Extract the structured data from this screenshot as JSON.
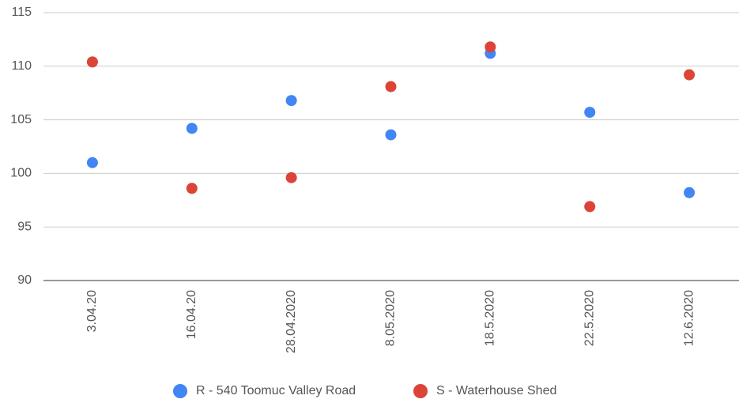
{
  "chart_data": {
    "type": "scatter",
    "categories": [
      "3.04.20",
      "16.04.20",
      "28.04.2020",
      "8.05.2020",
      "18.5.2020",
      "22.5.2020",
      "12.6.2020"
    ],
    "series": [
      {
        "name": "R - 540 Toomuc Valley Road",
        "color": "#4285f4",
        "values": [
          101.0,
          104.2,
          106.8,
          103.6,
          111.2,
          105.7,
          98.2
        ]
      },
      {
        "name": "S - Waterhouse Shed",
        "color": "#db4437",
        "values": [
          110.4,
          98.6,
          99.6,
          108.1,
          111.8,
          96.9,
          109.2
        ]
      }
    ],
    "ylim": [
      90,
      115
    ],
    "yticks": [
      90,
      95,
      100,
      105,
      110,
      115
    ],
    "grid": true,
    "legend": "bottom"
  }
}
